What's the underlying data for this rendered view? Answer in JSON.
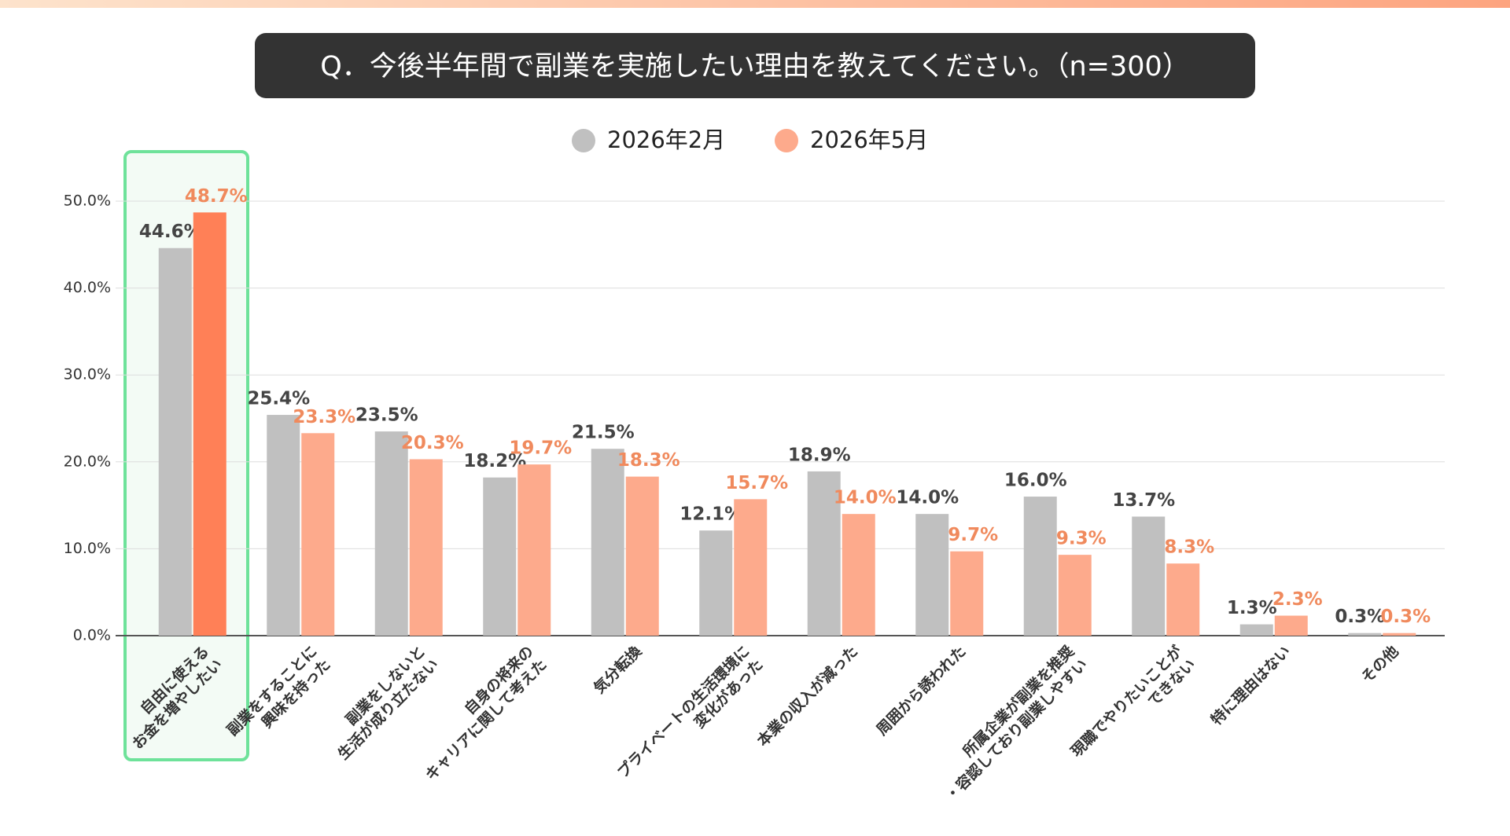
{
  "chart_data": {
    "type": "bar",
    "title": "Q．今後半年間で副業を実施したい理由を教えてください。（n=300）",
    "categories": [
      [
        "自由に使える",
        "お金を増やしたい"
      ],
      [
        "副業をすることに",
        "興味を持った"
      ],
      [
        "副業をしないと",
        "生活が成り立たない"
      ],
      [
        "自身の将来の",
        "キャリアに関して考えた"
      ],
      [
        "気分転換"
      ],
      [
        "プライベートの生活環境に",
        "変化があった"
      ],
      [
        "本業の収入が減った"
      ],
      [
        "周囲から誘われた"
      ],
      [
        "所属企業が副業を推奨",
        "・容認しており副業しやすい"
      ],
      [
        "現職でやりたいことが",
        "できない"
      ],
      [
        "特に理由はない"
      ],
      [
        "その他"
      ]
    ],
    "series": [
      {
        "name": "2026年2月",
        "color": "#c0c0c0",
        "values": [
          44.6,
          25.4,
          23.5,
          18.2,
          21.5,
          12.1,
          18.9,
          14.0,
          16.0,
          13.7,
          1.3,
          0.3
        ],
        "value_labels": [
          "44.6%",
          "25.4%",
          "23.5%",
          "18.2%",
          "21.5%",
          "12.1%",
          "18.9%",
          "14.0%",
          "16.0%",
          "13.7%",
          "1.3%",
          "0.3%"
        ]
      },
      {
        "name": "2026年5月",
        "color": "#fdaa8c",
        "colors": [
          "#ff8057",
          "#fdaa8c",
          "#fdaa8c",
          "#fdaa8c",
          "#fdaa8c",
          "#fdaa8c",
          "#fdaa8c",
          "#fdaa8c",
          "#fdaa8c",
          "#fdaa8c",
          "#fdaa8c",
          "#fdaa8c"
        ],
        "values": [
          48.7,
          23.3,
          20.3,
          19.7,
          18.3,
          15.7,
          14.0,
          9.7,
          9.3,
          8.3,
          2.3,
          0.3
        ],
        "value_labels": [
          "48.7%",
          "23.3%",
          "20.3%",
          "19.7%",
          "18.3%",
          "15.7%",
          "14.0%",
          "9.7%",
          "9.3%",
          "8.3%",
          "2.3%",
          "0.3%"
        ]
      }
    ],
    "ylim": [
      0,
      50
    ],
    "yticks": [
      {
        "value": 0,
        "label": "0.0%"
      },
      {
        "value": 10,
        "label": "10.0%"
      },
      {
        "value": 20,
        "label": "20.0%"
      },
      {
        "value": 30,
        "label": "30.0%"
      },
      {
        "value": 40,
        "label": "40.0%"
      },
      {
        "value": 50,
        "label": "50.0%"
      }
    ],
    "grid": true
  }
}
